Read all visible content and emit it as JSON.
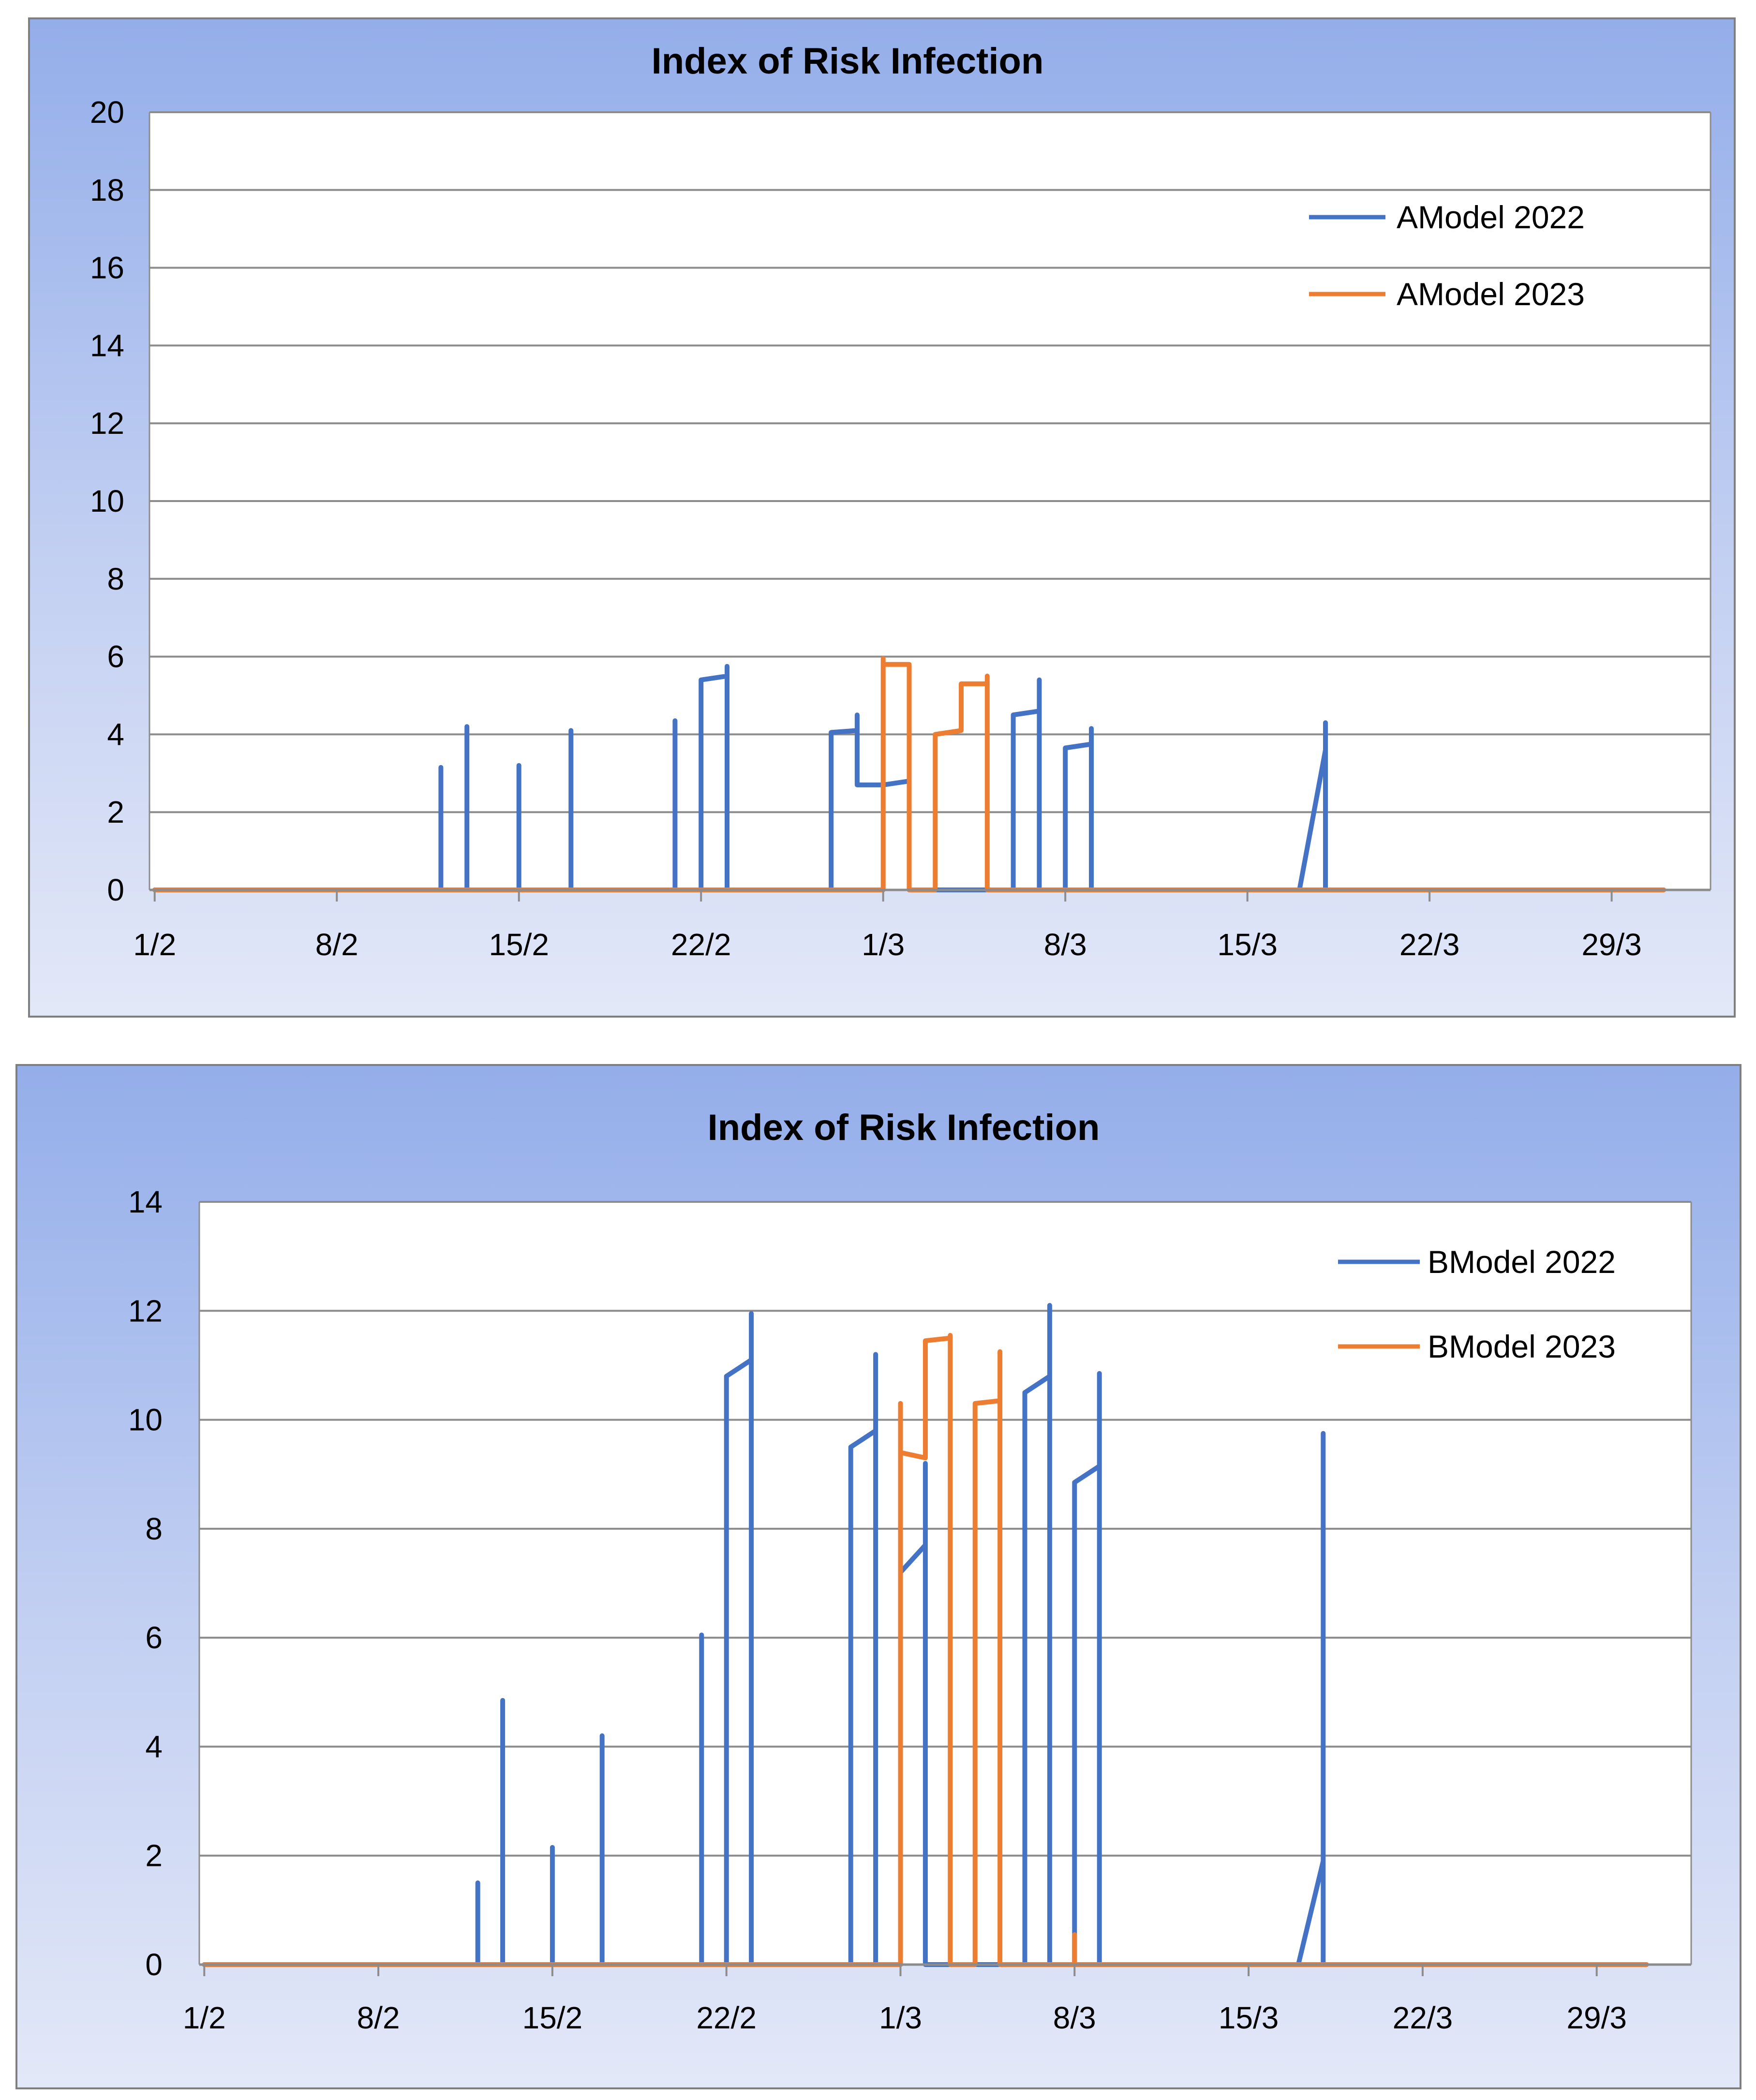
{
  "chart_data": [
    {
      "type": "line",
      "title": "Index of Risk Infection",
      "xlabel": "",
      "ylabel": "",
      "x_domain": [
        0,
        60
      ],
      "ylim": [
        0,
        20
      ],
      "yticks": [
        0,
        2,
        4,
        6,
        8,
        10,
        12,
        14,
        16,
        18,
        20
      ],
      "xticks": [
        {
          "day": 0,
          "label": "1/2"
        },
        {
          "day": 7,
          "label": "8/2"
        },
        {
          "day": 14,
          "label": "15/2"
        },
        {
          "day": 21,
          "label": "22/2"
        },
        {
          "day": 28,
          "label": "1/3"
        },
        {
          "day": 35,
          "label": "8/3"
        },
        {
          "day": 42,
          "label": "15/3"
        },
        {
          "day": 49,
          "label": "22/3"
        },
        {
          "day": 56,
          "label": "29/3"
        }
      ],
      "grid": true,
      "legend_position": "top-right",
      "colors": {
        "series_1": "#4472c4",
        "series_2": "#ed7d31"
      },
      "series": [
        {
          "name": "AModel 2022",
          "color": "#4472c4",
          "points": [
            [
              0,
              0
            ],
            [
              11,
              0
            ],
            [
              11,
              3.15
            ],
            [
              11,
              0
            ],
            [
              12,
              0
            ],
            [
              12,
              4.2
            ],
            [
              12,
              0
            ],
            [
              14,
              0
            ],
            [
              14,
              3.2
            ],
            [
              14,
              0
            ],
            [
              16,
              0
            ],
            [
              16,
              4.1
            ],
            [
              16,
              0
            ],
            [
              20,
              0
            ],
            [
              20,
              4.35
            ],
            [
              20,
              0
            ],
            [
              21,
              0
            ],
            [
              21,
              5.4
            ],
            [
              22,
              5.5
            ],
            [
              22,
              5.75
            ],
            [
              22,
              0
            ],
            [
              26,
              0
            ],
            [
              26,
              4.05
            ],
            [
              27,
              4.1
            ],
            [
              27,
              4.5
            ],
            [
              27,
              2.7
            ],
            [
              28,
              2.7
            ],
            [
              29,
              2.8
            ],
            [
              29,
              0
            ],
            [
              30,
              0
            ],
            [
              31,
              0
            ],
            [
              32,
              0
            ],
            [
              33,
              0
            ],
            [
              33,
              4.5
            ],
            [
              34,
              4.6
            ],
            [
              34,
              5.4
            ],
            [
              34,
              0
            ],
            [
              35,
              0
            ],
            [
              35,
              3.65
            ],
            [
              36,
              3.75
            ],
            [
              36,
              4.15
            ],
            [
              36,
              0
            ],
            [
              44,
              0
            ],
            [
              45,
              3.6
            ],
            [
              45,
              4.3
            ],
            [
              45,
              0
            ],
            [
              58,
              0
            ]
          ]
        },
        {
          "name": "AModel 2023",
          "color": "#ed7d31",
          "points": [
            [
              0,
              0
            ],
            [
              28,
              0
            ],
            [
              28,
              5.95
            ],
            [
              28,
              5.8
            ],
            [
              29,
              5.8
            ],
            [
              29,
              0
            ],
            [
              30,
              0
            ],
            [
              30,
              4.0
            ],
            [
              31,
              4.1
            ],
            [
              31,
              5.3
            ],
            [
              32,
              5.3
            ],
            [
              32,
              5.5
            ],
            [
              32,
              0
            ],
            [
              58,
              0
            ]
          ]
        }
      ]
    },
    {
      "type": "line",
      "title": "Index of Risk Infection",
      "xlabel": "",
      "ylabel": "",
      "x_domain": [
        0,
        60
      ],
      "ylim": [
        0,
        14
      ],
      "yticks": [
        0,
        2,
        4,
        6,
        8,
        10,
        12,
        14
      ],
      "xticks": [
        {
          "day": 0,
          "label": "1/2"
        },
        {
          "day": 7,
          "label": "8/2"
        },
        {
          "day": 14,
          "label": "15/2"
        },
        {
          "day": 21,
          "label": "22/2"
        },
        {
          "day": 28,
          "label": "1/3"
        },
        {
          "day": 35,
          "label": "8/3"
        },
        {
          "day": 42,
          "label": "15/3"
        },
        {
          "day": 49,
          "label": "22/3"
        },
        {
          "day": 56,
          "label": "29/3"
        }
      ],
      "grid": true,
      "legend_position": "top-right",
      "colors": {
        "series_1": "#4472c4",
        "series_2": "#ed7d31"
      },
      "series": [
        {
          "name": "BModel 2022",
          "color": "#4472c4",
          "points": [
            [
              0,
              0
            ],
            [
              11,
              0
            ],
            [
              11,
              1.5
            ],
            [
              11,
              0
            ],
            [
              12,
              0
            ],
            [
              12,
              4.85
            ],
            [
              12,
              0
            ],
            [
              14,
              0
            ],
            [
              14,
              2.15
            ],
            [
              14,
              0
            ],
            [
              16,
              0
            ],
            [
              16,
              4.2
            ],
            [
              16,
              0
            ],
            [
              20,
              0
            ],
            [
              20,
              6.05
            ],
            [
              20,
              0
            ],
            [
              21,
              0
            ],
            [
              21,
              10.8
            ],
            [
              22,
              11.1
            ],
            [
              22,
              11.95
            ],
            [
              22,
              0
            ],
            [
              26,
              0
            ],
            [
              26,
              9.5
            ],
            [
              27,
              9.8
            ],
            [
              27,
              11.2
            ],
            [
              27,
              0
            ],
            [
              28,
              0
            ],
            [
              28,
              7.2
            ],
            [
              29,
              7.7
            ],
            [
              29,
              9.2
            ],
            [
              29,
              0
            ],
            [
              33,
              0
            ],
            [
              33,
              10.5
            ],
            [
              34,
              10.8
            ],
            [
              34,
              12.1
            ],
            [
              34,
              0
            ],
            [
              35,
              0
            ],
            [
              35,
              8.85
            ],
            [
              36,
              9.15
            ],
            [
              36,
              10.85
            ],
            [
              36,
              0
            ],
            [
              44,
              0
            ],
            [
              45,
              1.9
            ],
            [
              45,
              9.75
            ],
            [
              45,
              0
            ],
            [
              58,
              0
            ]
          ]
        },
        {
          "name": "BModel 2023",
          "color": "#ed7d31",
          "points": [
            [
              0,
              0
            ],
            [
              28,
              0
            ],
            [
              28,
              10.3
            ],
            [
              28,
              9.4
            ],
            [
              29,
              9.3
            ],
            [
              29,
              11.45
            ],
            [
              30,
              11.5
            ],
            [
              30,
              11.55
            ],
            [
              30,
              0
            ],
            [
              31,
              0
            ],
            [
              31,
              10.3
            ],
            [
              32,
              10.35
            ],
            [
              32,
              11.25
            ],
            [
              32,
              0
            ],
            [
              35,
              0
            ],
            [
              35,
              0.55
            ],
            [
              35,
              0
            ],
            [
              58,
              0
            ]
          ]
        }
      ]
    }
  ]
}
